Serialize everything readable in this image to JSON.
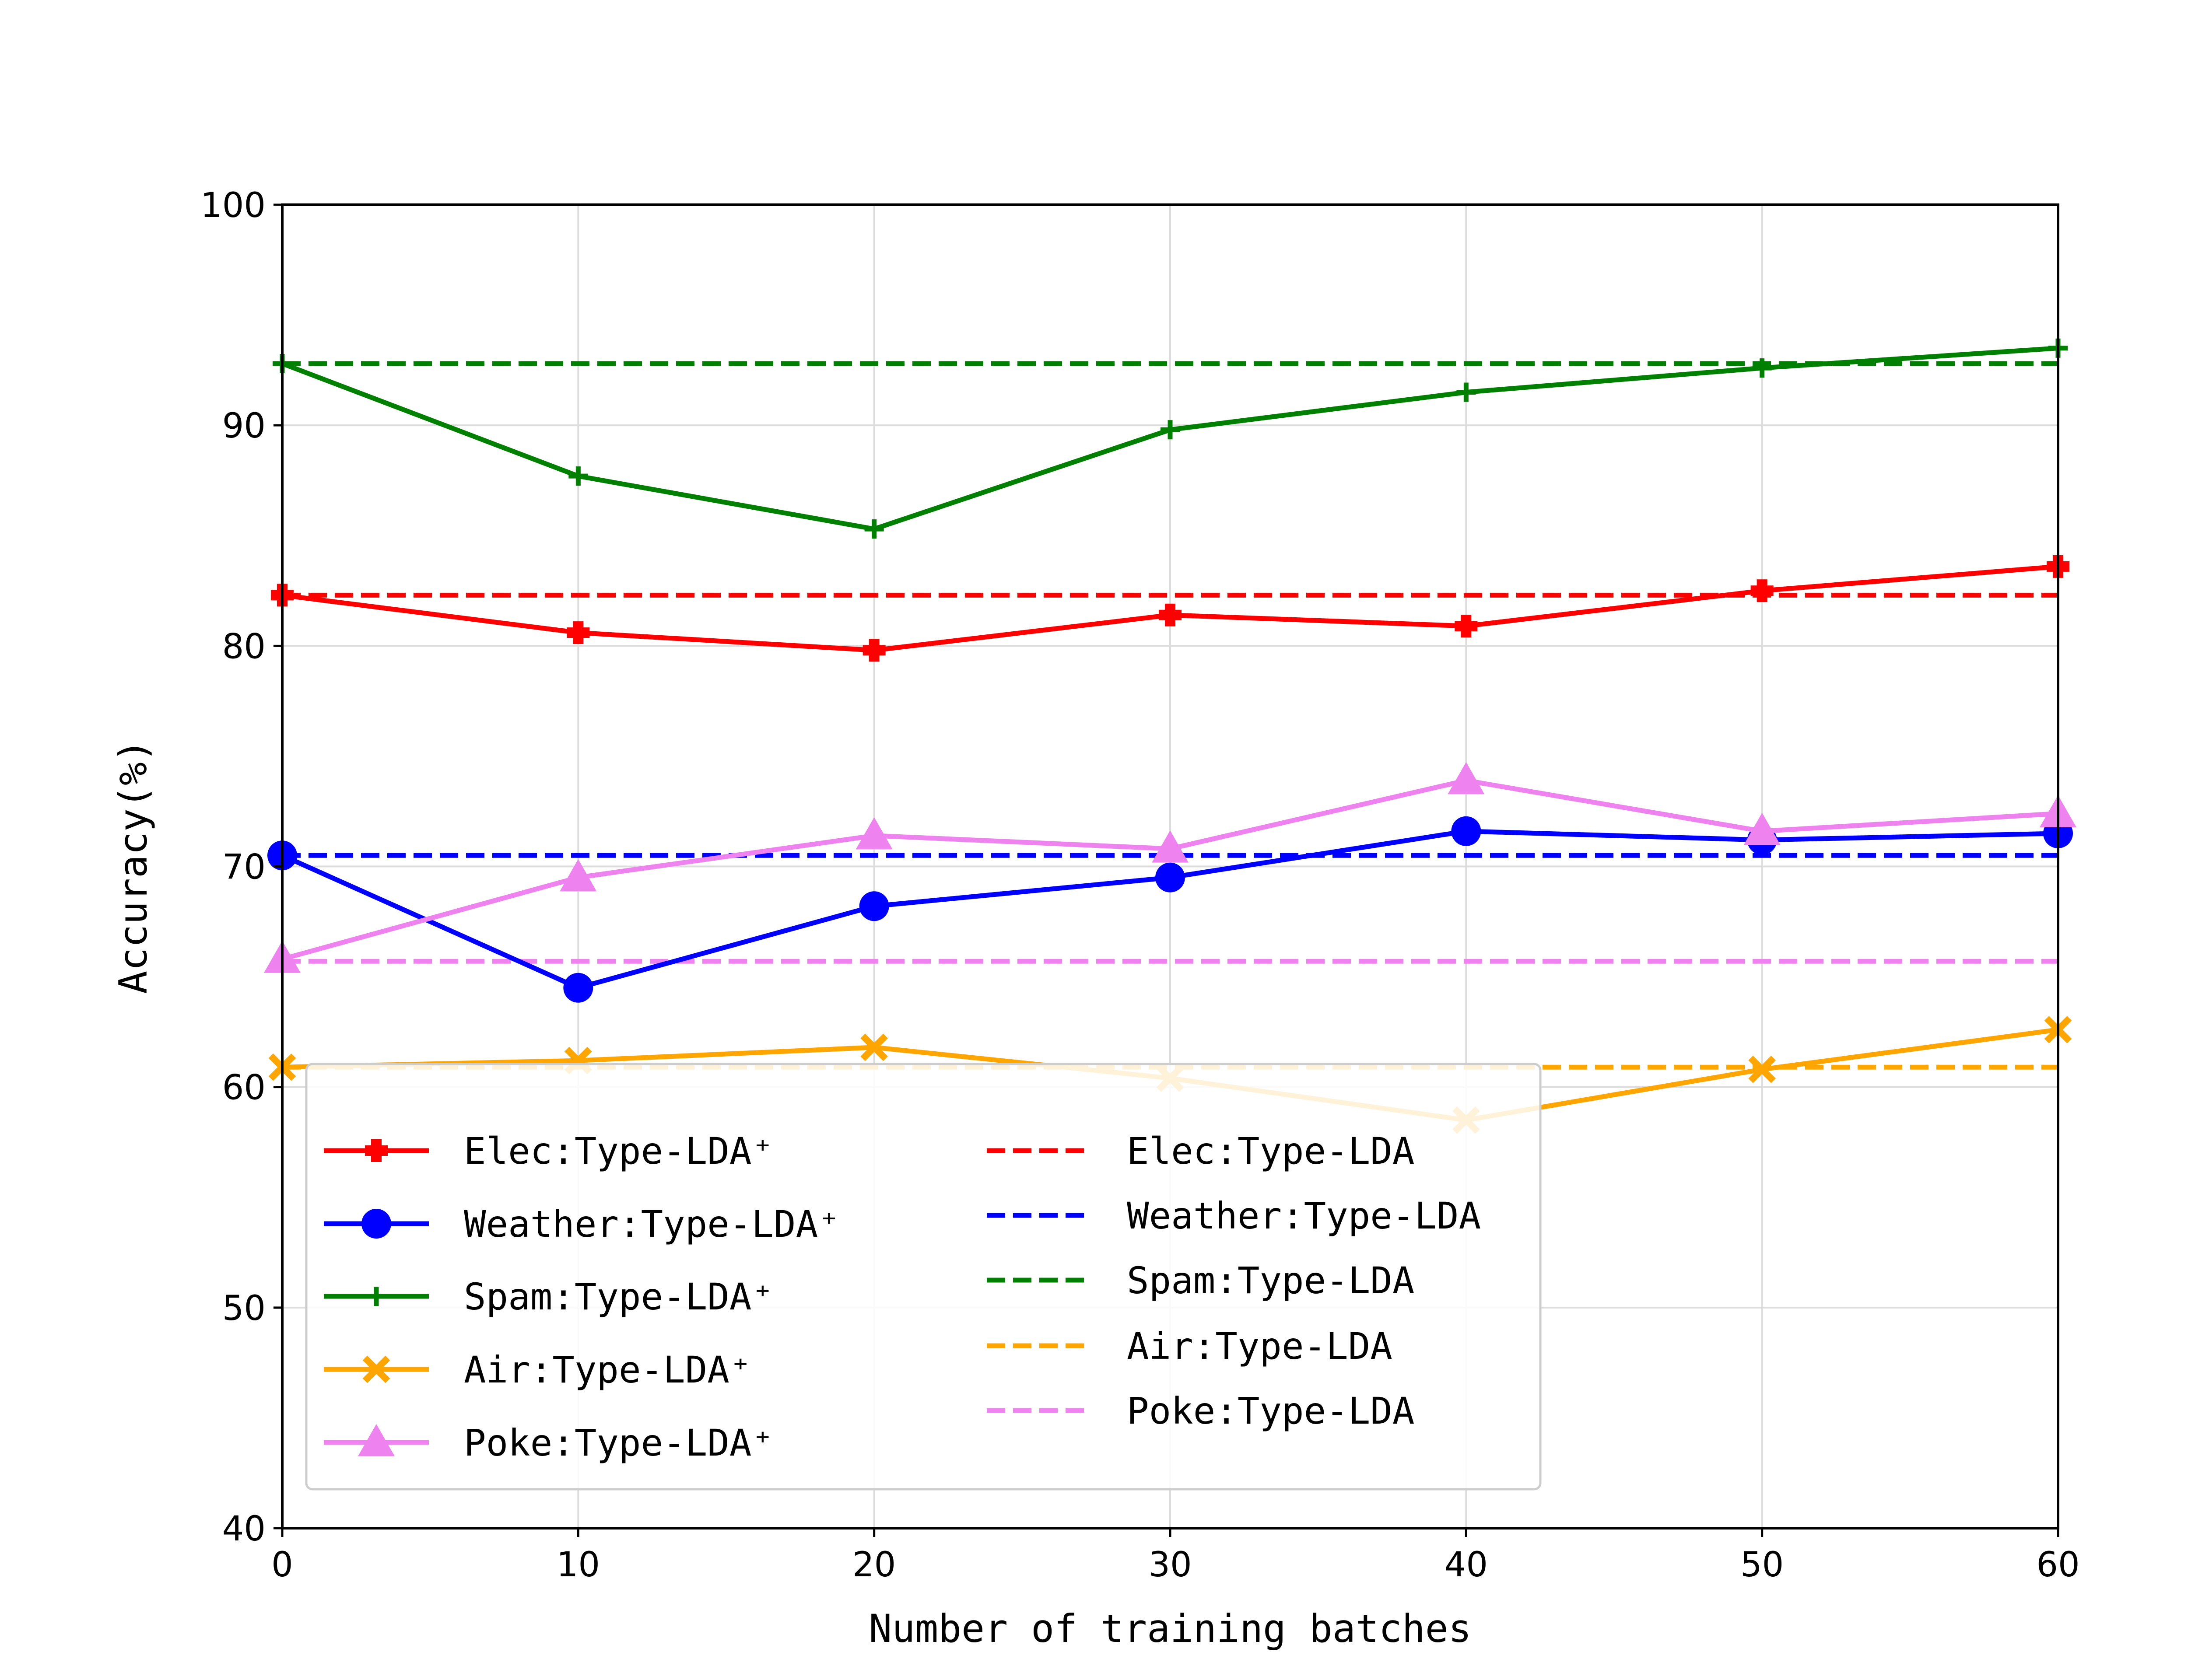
{
  "chart_data": {
    "type": "line",
    "xlabel": "Number of training batches",
    "ylabel": "Accuracy(%)",
    "xlim": [
      0,
      60
    ],
    "ylim": [
      40,
      100
    ],
    "x_ticks": [
      "0",
      "10",
      "20",
      "30",
      "40",
      "50",
      "60"
    ],
    "y_ticks": [
      "40",
      "50",
      "60",
      "70",
      "80",
      "90",
      "100"
    ],
    "grid": true,
    "legend_position": "lower-left",
    "x": [
      0,
      10,
      20,
      30,
      40,
      50,
      60
    ],
    "series": [
      {
        "name": "Elec:Type-LDA⁺",
        "style": "solid",
        "marker": "plus-filled",
        "color": "#ff0000",
        "values": [
          82.3,
          80.6,
          79.8,
          81.4,
          80.9,
          82.5,
          83.6
        ]
      },
      {
        "name": "Weather:Type-LDA⁺",
        "style": "solid",
        "marker": "circle",
        "color": "#0000ff",
        "values": [
          70.5,
          64.5,
          68.2,
          69.5,
          71.6,
          71.2,
          71.5
        ]
      },
      {
        "name": "Spam:Type-LDA⁺",
        "style": "solid",
        "marker": "plus",
        "color": "#008000",
        "values": [
          92.8,
          87.7,
          85.3,
          89.8,
          91.5,
          92.6,
          93.5
        ]
      },
      {
        "name": "Air:Type-LDA⁺",
        "style": "solid",
        "marker": "x-filled",
        "color": "#ffa500",
        "values": [
          60.9,
          61.2,
          61.8,
          60.4,
          58.5,
          60.8,
          62.6
        ]
      },
      {
        "name": "Poke:Type-LDA⁺",
        "style": "solid",
        "marker": "triangle",
        "color": "#ee82ee",
        "values": [
          65.8,
          69.5,
          71.4,
          70.8,
          73.9,
          71.6,
          72.4
        ]
      },
      {
        "name": "Elec:Type-LDA",
        "style": "dashed",
        "marker": "none",
        "color": "#ff0000",
        "values": [
          82.3,
          82.3,
          82.3,
          82.3,
          82.3,
          82.3,
          82.3
        ]
      },
      {
        "name": "Weather:Type-LDA",
        "style": "dashed",
        "marker": "none",
        "color": "#0000ff",
        "values": [
          70.5,
          70.5,
          70.5,
          70.5,
          70.5,
          70.5,
          70.5
        ]
      },
      {
        "name": "Spam:Type-LDA",
        "style": "dashed",
        "marker": "none",
        "color": "#008000",
        "values": [
          92.8,
          92.8,
          92.8,
          92.8,
          92.8,
          92.8,
          92.8
        ]
      },
      {
        "name": "Air:Type-LDA",
        "style": "dashed",
        "marker": "none",
        "color": "#ffa500",
        "values": [
          60.9,
          60.9,
          60.9,
          60.9,
          60.9,
          60.9,
          60.9
        ]
      },
      {
        "name": "Poke:Type-LDA",
        "style": "dashed",
        "marker": "none",
        "color": "#ee82ee",
        "values": [
          65.7,
          65.7,
          65.7,
          65.7,
          65.7,
          65.7,
          65.7
        ]
      }
    ]
  }
}
